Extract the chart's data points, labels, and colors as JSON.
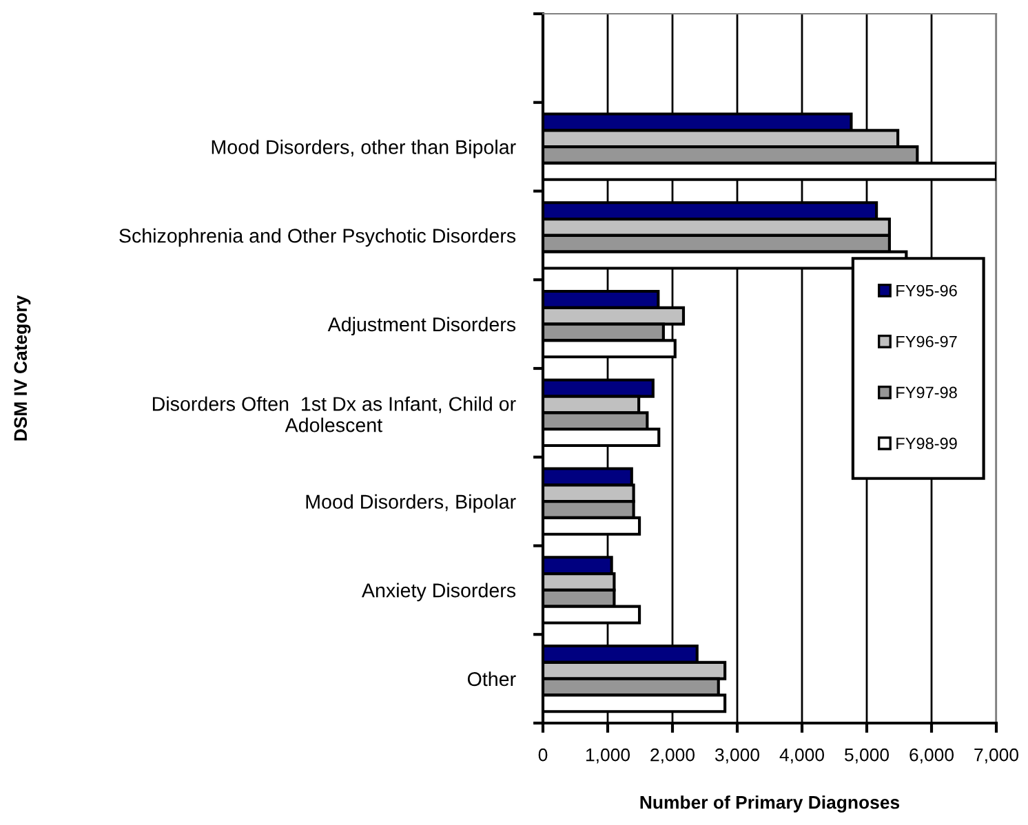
{
  "chart_data": {
    "type": "bar",
    "orientation": "horizontal",
    "xlabel": "Number of Primary Diagnoses",
    "ylabel": "DSM IV Category",
    "categories": [
      null,
      "Mood Disorders, other than Bipolar",
      "Schizophrenia and Other Psychotic Disorders",
      "Adjustment Disorders",
      "Disorders Often  1st Dx as Infant, Child or\nAdolescent",
      "Mood Disorders, Bipolar",
      "Anxiety Disorders",
      "Other"
    ],
    "series": [
      {
        "name": "FY95-96",
        "color": "#000080",
        "values": [
          null,
          4760,
          5150,
          1780,
          1700,
          1370,
          1060,
          2380
        ]
      },
      {
        "name": "FY96-97",
        "color": "#c0c0c0",
        "values": [
          null,
          5480,
          5350,
          2170,
          1480,
          1400,
          1100,
          2810
        ]
      },
      {
        "name": "FY97-98",
        "color": "#969696",
        "values": [
          null,
          5780,
          5350,
          1860,
          1610,
          1400,
          1100,
          2710
        ]
      },
      {
        "name": "FY98-99",
        "color": "#ffffff",
        "values": [
          null,
          7000,
          5610,
          2040,
          1790,
          1490,
          1490,
          2810
        ]
      }
    ],
    "xlim": [
      0,
      7000
    ],
    "xticks": [
      {
        "value": 0,
        "label": "0"
      },
      {
        "value": 1000,
        "label": "1,000"
      },
      {
        "value": 2000,
        "label": "2,000"
      },
      {
        "value": 3000,
        "label": "3,000"
      },
      {
        "value": 4000,
        "label": "4,000"
      },
      {
        "value": 5000,
        "label": "5,000"
      },
      {
        "value": 6000,
        "label": "6,000"
      },
      {
        "value": 7000,
        "label": "7,000"
      }
    ],
    "grid": "x",
    "legend": "right"
  }
}
